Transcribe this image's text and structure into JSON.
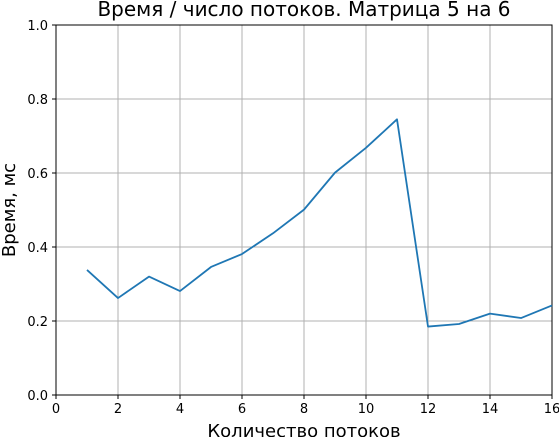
{
  "chart_data": {
    "type": "line",
    "title": "Время / число потоков. Матрица 5 на 6",
    "xlabel": "Количество потоков",
    "ylabel": "Время, мс",
    "xlim": [
      0,
      16
    ],
    "ylim": [
      0.0,
      1.0
    ],
    "xticks": [
      "0",
      "2",
      "4",
      "6",
      "8",
      "10",
      "12",
      "14",
      "16"
    ],
    "yticks": [
      "0.0",
      "0.2",
      "0.4",
      "0.6",
      "0.8",
      "1.0"
    ],
    "grid": true,
    "colors": {
      "line": "#1f77b4",
      "grid": "#b0b0b0"
    },
    "series": [
      {
        "x": [
          1,
          2,
          3,
          4,
          5,
          6,
          7,
          8,
          9,
          10,
          11,
          12,
          13,
          14,
          15,
          16
        ],
        "values": [
          0.338,
          0.262,
          0.32,
          0.281,
          0.346,
          0.381,
          0.437,
          0.501,
          0.601,
          0.668,
          0.745,
          0.185,
          0.192,
          0.22,
          0.208,
          0.242
        ]
      }
    ]
  }
}
